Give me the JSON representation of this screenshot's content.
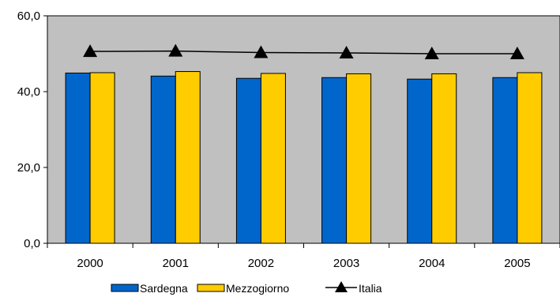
{
  "chart_data": {
    "type": "bar",
    "categories": [
      "2000",
      "2001",
      "2002",
      "2003",
      "2004",
      "2005"
    ],
    "series": [
      {
        "name": "Sardegna",
        "type": "bar",
        "color": "#0066CC",
        "values": [
          44.9,
          44.1,
          43.5,
          43.7,
          43.3,
          43.7
        ]
      },
      {
        "name": "Mezzogiorno",
        "type": "bar",
        "color": "#FFCC00",
        "values": [
          45.0,
          45.3,
          44.8,
          44.7,
          44.7,
          45.0
        ]
      },
      {
        "name": "Italia",
        "type": "line",
        "color": "#000000",
        "marker": "triangle",
        "values": [
          50.6,
          50.7,
          50.3,
          50.2,
          50.0,
          50.0
        ]
      }
    ],
    "yticks": [
      "0,0",
      "20,0",
      "40,0",
      "60,0"
    ],
    "ylim": [
      0,
      60
    ],
    "plot_background": "#C0C0C0",
    "grid": false,
    "legend_position": "bottom"
  }
}
